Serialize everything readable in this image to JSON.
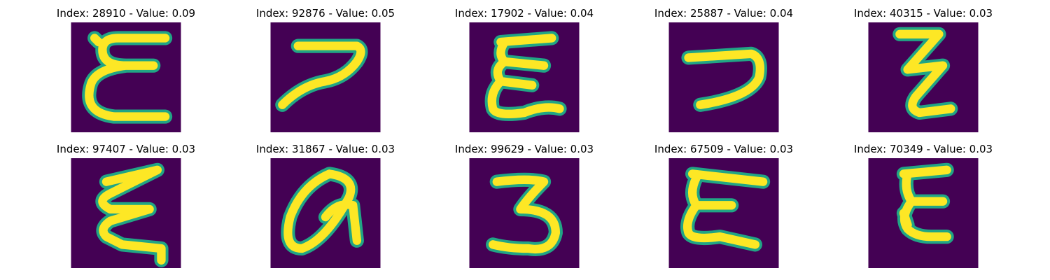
{
  "colors": {
    "background": "#440154",
    "stroke": "#fde725",
    "edge": "#21a585"
  },
  "panels": [
    {
      "title": "Index: 28910 - Value: 0.09",
      "glyph": "E"
    },
    {
      "title": "Index: 92876 - Value: 0.05",
      "glyph": "7"
    },
    {
      "title": "Index: 17902 - Value: 0.04",
      "glyph": "E"
    },
    {
      "title": "Index: 25887 - Value: 0.04",
      "glyph": "7"
    },
    {
      "title": "Index: 40315 - Value: 0.03",
      "glyph": "Z"
    },
    {
      "title": "Index: 97407 - Value: 0.03",
      "glyph": "E"
    },
    {
      "title": "Index: 31867 - Value: 0.03",
      "glyph": "a"
    },
    {
      "title": "Index: 99629 - Value: 0.03",
      "glyph": "3"
    },
    {
      "title": "Index: 67509 - Value: 0.03",
      "glyph": "E"
    },
    {
      "title": "Index: 70349 - Value: 0.03",
      "glyph": "E"
    }
  ]
}
